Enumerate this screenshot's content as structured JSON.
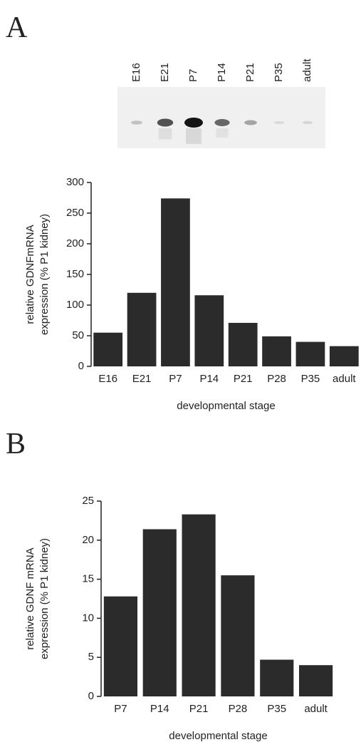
{
  "panels": {
    "a_letter": "A",
    "b_letter": "B"
  },
  "blot": {
    "lanes": [
      "E16",
      "E21",
      "P7",
      "P14",
      "P21",
      "P35",
      "adult"
    ],
    "intensities": [
      0.15,
      0.7,
      1.0,
      0.6,
      0.3,
      0.03,
      0.05
    ]
  },
  "chart_data": [
    {
      "type": "bar",
      "categories": [
        "E16",
        "E21",
        "P7",
        "P14",
        "P21",
        "P28",
        "P35",
        "adult"
      ],
      "values": [
        55,
        120,
        274,
        116,
        71,
        49,
        40,
        33
      ],
      "xlabel": "developmental stage",
      "ylabel_line1": "relative GDNFmRNA",
      "ylabel_line2": "expression (% P1 kidney)",
      "ylim": [
        0,
        300
      ],
      "yticks": [
        0,
        50,
        100,
        150,
        200,
        250,
        300
      ],
      "bar_color": "#2b2b2b"
    },
    {
      "type": "bar",
      "categories": [
        "P7",
        "P14",
        "P21",
        "P28",
        "P35",
        "adult"
      ],
      "values": [
        12.8,
        21.4,
        23.3,
        15.5,
        4.7,
        4.0
      ],
      "xlabel": "developmental stage",
      "ylabel_line1": "relative GDNF mRNA",
      "ylabel_line2": "expression (% P1 kidney)",
      "ylim": [
        0,
        25
      ],
      "yticks": [
        0,
        5,
        10,
        15,
        20,
        25
      ],
      "bar_color": "#2b2b2b"
    }
  ]
}
